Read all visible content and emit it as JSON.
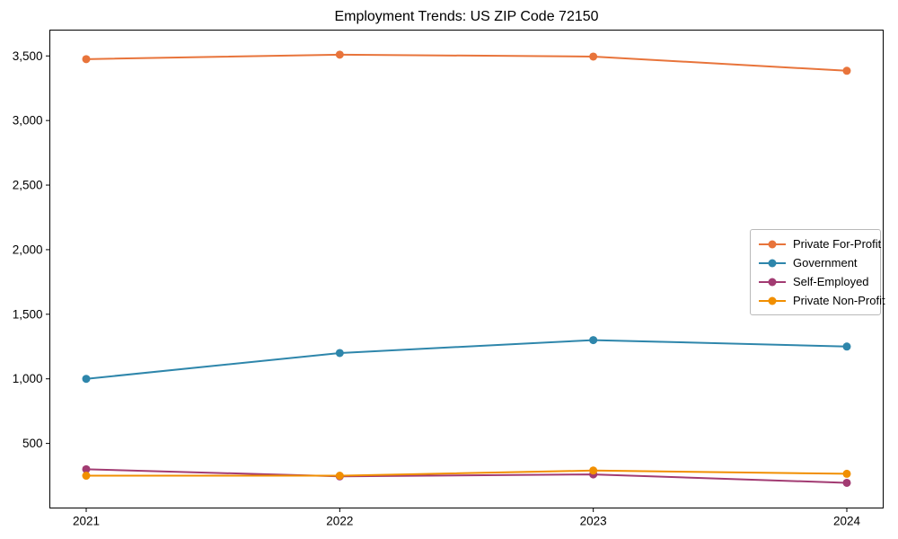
{
  "chart_data": {
    "type": "line",
    "title": "Employment Trends: US ZIP Code 72150",
    "x": [
      2021,
      2022,
      2023,
      2024
    ],
    "xtick_labels": [
      "2021",
      "2022",
      "2023",
      "2024"
    ],
    "series": [
      {
        "name": "Private For-Profit",
        "color": "#E8743B",
        "values": [
          3475,
          3510,
          3495,
          3385
        ]
      },
      {
        "name": "Government",
        "color": "#2E86AB",
        "values": [
          1000,
          1200,
          1300,
          1250
        ]
      },
      {
        "name": "Self-Employed",
        "color": "#A23B72",
        "values": [
          300,
          245,
          260,
          195
        ]
      },
      {
        "name": "Private Non-Profit",
        "color": "#F18F01",
        "values": [
          250,
          250,
          290,
          265
        ]
      }
    ],
    "ylim": [
      0,
      3700
    ],
    "yticks": [
      500,
      1000,
      1500,
      2000,
      2500,
      3000,
      3500
    ],
    "ytick_labels": [
      "500",
      "1,000",
      "1,500",
      "2,000",
      "2,500",
      "3,000",
      "3,500"
    ],
    "xlabel": "",
    "ylabel": "",
    "grid": false,
    "legend_position": "center-right",
    "marker": "circle",
    "axis_color": "#000000",
    "text_color": "#000000",
    "background_color": "#ffffff"
  }
}
